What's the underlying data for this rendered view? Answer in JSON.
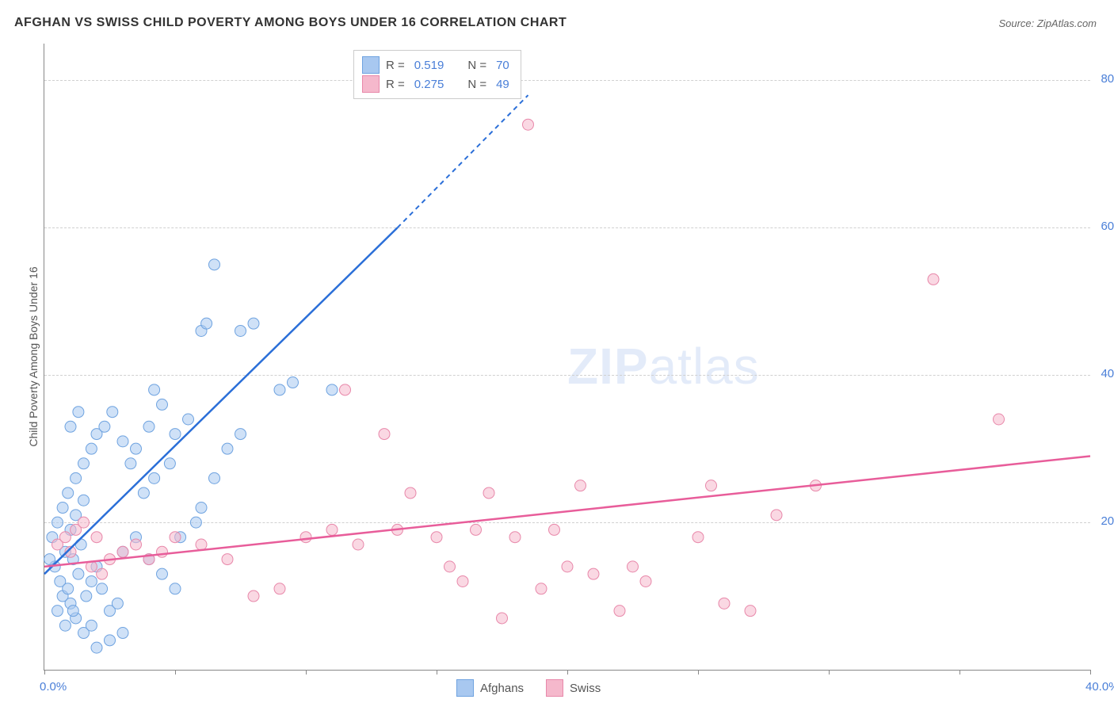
{
  "title": "AFGHAN VS SWISS CHILD POVERTY AMONG BOYS UNDER 16 CORRELATION CHART",
  "source": "Source: ZipAtlas.com",
  "watermark_a": "ZIP",
  "watermark_b": "atlas",
  "chart": {
    "type": "scatter",
    "y_label": "Child Poverty Among Boys Under 16",
    "x_min": 0,
    "x_max": 40,
    "y_min": 0,
    "y_max": 85,
    "x_ticks": [
      0,
      5,
      10,
      15,
      20,
      25,
      30,
      35,
      40
    ],
    "x_tick_labels": {
      "0": "0.0%",
      "40": "40.0%"
    },
    "y_gridlines": [
      20,
      40,
      60,
      80
    ],
    "y_grid_labels": {
      "20": "20.0%",
      "40": "40.0%",
      "60": "60.0%",
      "80": "80.0%"
    },
    "background_color": "#ffffff",
    "grid_color": "#d0d0d0",
    "axis_color": "#888888",
    "label_color": "#4a7fd8",
    "marker_radius": 7,
    "marker_opacity": 0.55,
    "line_width": 2.5,
    "series": [
      {
        "name": "Afghans",
        "color_fill": "#a8c8f0",
        "color_stroke": "#6fa3e0",
        "line_color": "#2b6fd8",
        "R": "0.519",
        "N": "70",
        "trend": {
          "x1": 0,
          "y1": 13,
          "x2": 13.5,
          "y2": 60,
          "dash_to_x": 18.5,
          "dash_to_y": 78
        },
        "points": [
          [
            0.3,
            18
          ],
          [
            0.5,
            20
          ],
          [
            0.7,
            22
          ],
          [
            0.8,
            16
          ],
          [
            0.4,
            14
          ],
          [
            0.6,
            12
          ],
          [
            0.9,
            24
          ],
          [
            1.0,
            19
          ],
          [
            1.1,
            15
          ],
          [
            1.2,
            21
          ],
          [
            1.3,
            13
          ],
          [
            1.4,
            17
          ],
          [
            1.5,
            23
          ],
          [
            0.5,
            8
          ],
          [
            0.8,
            6
          ],
          [
            1.0,
            9
          ],
          [
            1.2,
            7
          ],
          [
            1.6,
            10
          ],
          [
            1.8,
            12
          ],
          [
            2.0,
            14
          ],
          [
            2.2,
            11
          ],
          [
            1.5,
            5
          ],
          [
            1.8,
            6
          ],
          [
            2.5,
            8
          ],
          [
            2.8,
            9
          ],
          [
            2.0,
            3
          ],
          [
            2.5,
            4
          ],
          [
            3.0,
            5
          ],
          [
            1.2,
            26
          ],
          [
            1.5,
            28
          ],
          [
            1.8,
            30
          ],
          [
            2.0,
            32
          ],
          [
            2.3,
            33
          ],
          [
            2.6,
            35
          ],
          [
            3.0,
            31
          ],
          [
            3.3,
            28
          ],
          [
            3.5,
            30
          ],
          [
            4.0,
            33
          ],
          [
            4.2,
            38
          ],
          [
            4.5,
            36
          ],
          [
            5.0,
            32
          ],
          [
            5.5,
            34
          ],
          [
            3.8,
            24
          ],
          [
            4.2,
            26
          ],
          [
            4.8,
            28
          ],
          [
            5.2,
            18
          ],
          [
            5.8,
            20
          ],
          [
            6.0,
            22
          ],
          [
            6.5,
            26
          ],
          [
            7.0,
            30
          ],
          [
            7.5,
            32
          ],
          [
            3.0,
            16
          ],
          [
            3.5,
            18
          ],
          [
            4.0,
            15
          ],
          [
            4.5,
            13
          ],
          [
            5.0,
            11
          ],
          [
            6.0,
            46
          ],
          [
            6.2,
            47
          ],
          [
            7.5,
            46
          ],
          [
            8.0,
            47
          ],
          [
            9.0,
            38
          ],
          [
            9.5,
            39
          ],
          [
            6.5,
            55
          ],
          [
            11.0,
            38
          ],
          [
            1.0,
            33
          ],
          [
            1.3,
            35
          ],
          [
            0.7,
            10
          ],
          [
            0.9,
            11
          ],
          [
            1.1,
            8
          ],
          [
            0.2,
            15
          ]
        ]
      },
      {
        "name": "Swiss",
        "color_fill": "#f5b8cc",
        "color_stroke": "#e888aa",
        "line_color": "#e85d9a",
        "R": "0.275",
        "N": "49",
        "trend": {
          "x1": 0,
          "y1": 14,
          "x2": 40,
          "y2": 29
        },
        "points": [
          [
            0.5,
            17
          ],
          [
            0.8,
            18
          ],
          [
            1.0,
            16
          ],
          [
            1.2,
            19
          ],
          [
            1.5,
            20
          ],
          [
            2.0,
            18
          ],
          [
            2.5,
            15
          ],
          [
            3.0,
            16
          ],
          [
            3.5,
            17
          ],
          [
            4.0,
            15
          ],
          [
            4.5,
            16
          ],
          [
            5.0,
            18
          ],
          [
            6.0,
            17
          ],
          [
            7.0,
            15
          ],
          [
            8.0,
            10
          ],
          [
            9.0,
            11
          ],
          [
            10.0,
            18
          ],
          [
            11.0,
            19
          ],
          [
            11.5,
            38
          ],
          [
            12.0,
            17
          ],
          [
            13.0,
            32
          ],
          [
            13.5,
            19
          ],
          [
            14.0,
            24
          ],
          [
            15.0,
            18
          ],
          [
            15.5,
            14
          ],
          [
            16.0,
            12
          ],
          [
            16.5,
            19
          ],
          [
            17.0,
            24
          ],
          [
            17.5,
            7
          ],
          [
            18.0,
            18
          ],
          [
            18.5,
            74
          ],
          [
            19.0,
            11
          ],
          [
            19.5,
            19
          ],
          [
            20.0,
            14
          ],
          [
            20.5,
            25
          ],
          [
            21.0,
            13
          ],
          [
            22.0,
            8
          ],
          [
            22.5,
            14
          ],
          [
            23.0,
            12
          ],
          [
            25.0,
            18
          ],
          [
            25.5,
            25
          ],
          [
            26.0,
            9
          ],
          [
            27.0,
            8
          ],
          [
            28.0,
            21
          ],
          [
            29.5,
            25
          ],
          [
            34.0,
            53
          ],
          [
            36.5,
            34
          ],
          [
            1.8,
            14
          ],
          [
            2.2,
            13
          ]
        ]
      }
    ]
  },
  "legend_top": {
    "rows": [
      {
        "swatch_fill": "#a8c8f0",
        "swatch_stroke": "#6fa3e0",
        "r_label": "R =",
        "r_val": "0.519",
        "n_label": "N =",
        "n_val": "70"
      },
      {
        "swatch_fill": "#f5b8cc",
        "swatch_stroke": "#e888aa",
        "r_label": "R =",
        "r_val": "0.275",
        "n_label": "N =",
        "n_val": "49"
      }
    ]
  },
  "legend_bottom": [
    {
      "swatch_fill": "#a8c8f0",
      "swatch_stroke": "#6fa3e0",
      "label": "Afghans"
    },
    {
      "swatch_fill": "#f5b8cc",
      "swatch_stroke": "#e888aa",
      "label": "Swiss"
    }
  ]
}
